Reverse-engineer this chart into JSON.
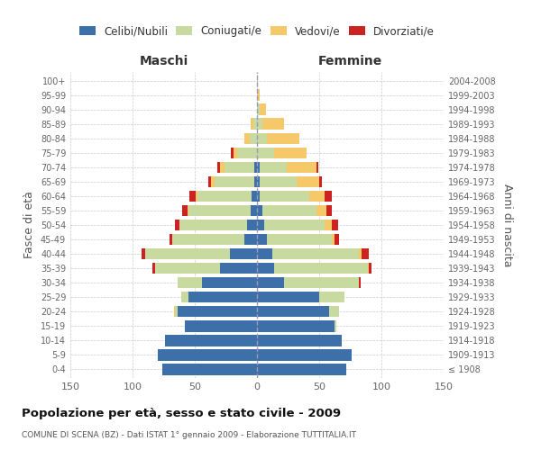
{
  "age_groups": [
    "100+",
    "95-99",
    "90-94",
    "85-89",
    "80-84",
    "75-79",
    "70-74",
    "65-69",
    "60-64",
    "55-59",
    "50-54",
    "45-49",
    "40-44",
    "35-39",
    "30-34",
    "25-29",
    "20-24",
    "15-19",
    "10-14",
    "5-9",
    "0-4"
  ],
  "birth_years": [
    "≤ 1908",
    "1909-1913",
    "1914-1918",
    "1919-1923",
    "1924-1928",
    "1929-1933",
    "1934-1938",
    "1939-1943",
    "1944-1948",
    "1949-1953",
    "1954-1958",
    "1959-1963",
    "1964-1968",
    "1969-1973",
    "1974-1978",
    "1979-1983",
    "1984-1988",
    "1989-1993",
    "1994-1998",
    "1999-2003",
    "2004-2008"
  ],
  "colors": {
    "celibi": "#3d6fa8",
    "coniugati": "#c8daa0",
    "vedovi": "#f5c96a",
    "divorziati": "#cc2222"
  },
  "maschi": {
    "celibi": [
      0,
      0,
      0,
      0,
      0,
      0,
      2,
      2,
      4,
      5,
      8,
      10,
      22,
      30,
      44,
      55,
      64,
      58,
      74,
      80,
      76
    ],
    "coniugati": [
      0,
      0,
      0,
      3,
      6,
      16,
      24,
      32,
      44,
      50,
      54,
      58,
      68,
      52,
      20,
      6,
      2,
      0,
      0,
      0,
      0
    ],
    "vedovi": [
      0,
      0,
      0,
      2,
      4,
      3,
      4,
      3,
      1,
      1,
      0,
      0,
      0,
      0,
      0,
      0,
      1,
      0,
      0,
      0,
      0
    ],
    "divorziati": [
      0,
      0,
      0,
      0,
      0,
      2,
      2,
      2,
      5,
      4,
      4,
      2,
      3,
      2,
      0,
      0,
      0,
      0,
      0,
      0,
      0
    ]
  },
  "femmine": {
    "celibi": [
      0,
      0,
      0,
      0,
      0,
      0,
      2,
      2,
      2,
      4,
      6,
      8,
      12,
      14,
      22,
      50,
      58,
      62,
      68,
      76,
      72
    ],
    "coniugati": [
      0,
      1,
      2,
      4,
      8,
      14,
      22,
      30,
      40,
      44,
      48,
      52,
      70,
      75,
      60,
      20,
      8,
      2,
      0,
      0,
      0
    ],
    "vedovi": [
      1,
      1,
      5,
      18,
      26,
      26,
      24,
      18,
      12,
      8,
      6,
      2,
      2,
      1,
      0,
      0,
      0,
      0,
      0,
      0,
      0
    ],
    "divorziati": [
      0,
      0,
      0,
      0,
      0,
      0,
      1,
      2,
      6,
      4,
      5,
      4,
      6,
      2,
      1,
      0,
      0,
      0,
      0,
      0,
      0
    ]
  },
  "xlim": 150,
  "title": "Popolazione per età, sesso e stato civile - 2009",
  "subtitle": "COMUNE DI SCENA (BZ) - Dati ISTAT 1° gennaio 2009 - Elaborazione TUTTITALIA.IT",
  "ylabel_left": "Fasce di età",
  "ylabel_right": "Anni di nascita",
  "legend_labels": [
    "Celibi/Nubili",
    "Coniugati/e",
    "Vedovi/e",
    "Divorziati/e"
  ],
  "maschi_label": "Maschi",
  "femmine_label": "Femmine",
  "bar_height": 0.78
}
